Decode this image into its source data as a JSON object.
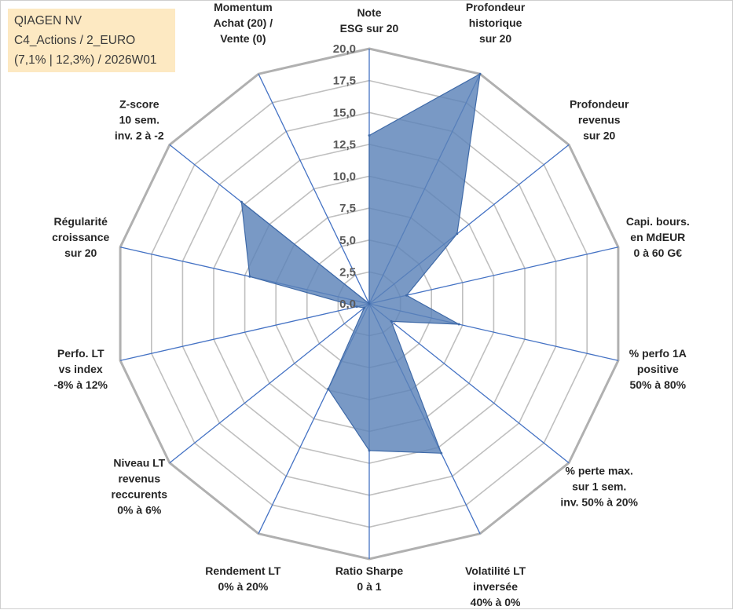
{
  "info": {
    "company": "QIAGEN NV",
    "category": "C4_Actions / 2_EURO",
    "stats": "(7,1% | 12,3%) / 2026W01"
  },
  "chart_data": {
    "type": "radar",
    "title": "",
    "min": 0,
    "max": 20,
    "step": 2.5,
    "tick_labels": [
      "0,0",
      "2,5",
      "5,0",
      "7,5",
      "10,0",
      "12,5",
      "15,0",
      "17,5",
      "20,0"
    ],
    "axes": [
      {
        "label": [
          "Note",
          "ESG sur 20"
        ],
        "value": 13.2
      },
      {
        "label": [
          "Profondeur",
          "historique",
          "sur 20"
        ],
        "value": 20.0
      },
      {
        "label": [
          "Profondeur",
          "revenus",
          "sur 20"
        ],
        "value": 8.8
      },
      {
        "label": [
          "Capi. bours.",
          "en MdEUR",
          "0 à 60 G€"
        ],
        "value": 3.0
      },
      {
        "label": [
          "% perfo 1A",
          "positive",
          "50% à 80%"
        ],
        "value": 7.2
      },
      {
        "label": [
          "% perte max.",
          "sur 1 sem.",
          "inv. 50% à 20%"
        ],
        "value": 2.2
      },
      {
        "label": [
          "Volatilité LT",
          "inversée",
          "40% à 0%"
        ],
        "value": 13.0
      },
      {
        "label": [
          "Ratio Sharpe",
          "0 à 1"
        ],
        "value": 11.5
      },
      {
        "label": [
          "Rendement LT",
          "0% à 20%"
        ],
        "value": 7.4
      },
      {
        "label": [
          "Niveau LT",
          "revenus",
          "reccurents",
          "0% à 6%"
        ],
        "value": 0.5
      },
      {
        "label": [
          "Perfo. LT",
          "vs index",
          "-8% à 12%"
        ],
        "value": 1.0
      },
      {
        "label": [
          "Régularité",
          "croissance",
          "sur 20"
        ],
        "value": 9.6
      },
      {
        "label": [
          "Z-score",
          "10 sem.",
          "inv. 2 à -2"
        ],
        "value": 12.8
      },
      {
        "label": [
          "Momentum",
          "Achat (20) /",
          "Vente (0)"
        ],
        "value": 0.0
      }
    ],
    "colors": {
      "fill": "#5b82b8",
      "stroke": "#3f6aa8",
      "axis": "#4472c4",
      "grid": "#bfbfbf",
      "outer_grid": "#b0b0b0"
    }
  }
}
